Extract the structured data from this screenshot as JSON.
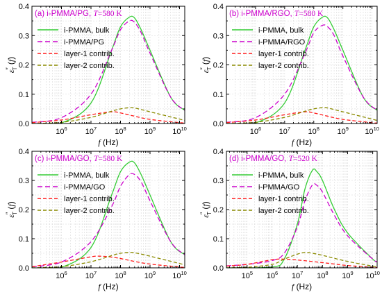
{
  "figure": {
    "colors": {
      "bulk": "#33cc33",
      "composite": "#cc00cc",
      "layer1": "#ff1a1a",
      "layer2": "#8b8b00",
      "title": "#cc00cc",
      "axis": "#000000",
      "grid": "#d8d8d8"
    },
    "xlabel_prefix": "f",
    "xlabel_suffix": " (Hz)",
    "ylabel": "ε″T (f)"
  },
  "chart_data": [
    {
      "type": "line",
      "panel": "a",
      "title": "(a) i-PMMA/PG, T=580 K",
      "xlabel": "f (Hz)",
      "ylabel": "ε″T (f)",
      "xscale": "log",
      "xlim": [
        100000,
        15000000000
      ],
      "ylim": [
        0,
        0.4
      ],
      "yticks": [
        0.0,
        0.1,
        0.2,
        0.3,
        0.4
      ],
      "xticks": [
        "10^6",
        "10^7",
        "10^8",
        "10^9",
        "10^10"
      ],
      "legend": "top-right",
      "series": [
        {
          "name": "i-PMMA, bulk",
          "style": "solid",
          "x": [
            100000.0,
            1000000.0,
            10000000.0,
            50000000.0,
            100000000.0,
            200000000.0,
            300000000.0,
            500000000.0,
            1000000000.0,
            5000000000.0,
            15000000000.0
          ],
          "y": [
            0.0,
            0.002,
            0.07,
            0.25,
            0.33,
            0.363,
            0.36,
            0.32,
            0.25,
            0.09,
            0.045
          ]
        },
        {
          "name": "i-PMMA/PG",
          "style": "dashed",
          "x": [
            100000.0,
            1000000.0,
            10000000.0,
            50000000.0,
            100000000.0,
            200000000.0,
            300000000.0,
            500000000.0,
            1000000000.0,
            5000000000.0,
            15000000000.0
          ],
          "y": [
            0.004,
            0.02,
            0.1,
            0.25,
            0.32,
            0.35,
            0.345,
            0.31,
            0.24,
            0.09,
            0.045
          ]
        },
        {
          "name": "layer-1 contrib.",
          "style": "dashed",
          "x": [
            100000.0,
            1000000.0,
            10000000.0,
            50000000.0,
            100000000.0,
            300000000.0,
            1000000000.0,
            10000000000.0,
            15000000000.0
          ],
          "y": [
            0.003,
            0.012,
            0.03,
            0.04,
            0.036,
            0.025,
            0.014,
            0.003,
            0.002
          ]
        },
        {
          "name": "layer-2 contrib.",
          "style": "dashed",
          "x": [
            100000.0,
            1000000.0,
            10000000.0,
            50000000.0,
            100000000.0,
            200000000.0,
            300000000.0,
            1000000000.0,
            10000000000.0,
            15000000000.0
          ],
          "y": [
            0.0,
            0.004,
            0.021,
            0.042,
            0.05,
            0.054,
            0.053,
            0.04,
            0.015,
            0.01
          ]
        }
      ]
    },
    {
      "type": "line",
      "panel": "b",
      "title": "(b) i-PMMA/RGO, T=580 K",
      "xlabel": "f (Hz)",
      "ylabel": "ε″T (f)",
      "xscale": "log",
      "xlim": [
        100000,
        15000000000
      ],
      "ylim": [
        0,
        0.4
      ],
      "yticks": [
        0.0,
        0.1,
        0.2,
        0.3,
        0.4
      ],
      "xticks": [
        "10^6",
        "10^7",
        "10^8",
        "10^9",
        "10^10"
      ],
      "legend": "top-right",
      "series": [
        {
          "name": "i-PMMA, bulk",
          "style": "solid",
          "x": [
            100000.0,
            1000000.0,
            10000000.0,
            50000000.0,
            100000000.0,
            200000000.0,
            300000000.0,
            500000000.0,
            1000000000.0,
            5000000000.0,
            15000000000.0
          ],
          "y": [
            0.0,
            0.002,
            0.07,
            0.25,
            0.33,
            0.363,
            0.36,
            0.32,
            0.25,
            0.09,
            0.045
          ]
        },
        {
          "name": "i-PMMA/RGO",
          "style": "dashed",
          "x": [
            100000.0,
            1000000.0,
            10000000.0,
            50000000.0,
            100000000.0,
            200000000.0,
            300000000.0,
            500000000.0,
            1000000000.0,
            5000000000.0,
            15000000000.0
          ],
          "y": [
            0.004,
            0.02,
            0.1,
            0.24,
            0.31,
            0.335,
            0.33,
            0.3,
            0.23,
            0.09,
            0.045
          ]
        },
        {
          "name": "layer-1 contrib.",
          "style": "dashed",
          "x": [
            100000.0,
            1000000.0,
            10000000.0,
            50000000.0,
            100000000.0,
            300000000.0,
            1000000000.0,
            10000000000.0,
            15000000000.0
          ],
          "y": [
            0.003,
            0.012,
            0.03,
            0.04,
            0.036,
            0.025,
            0.014,
            0.003,
            0.002
          ]
        },
        {
          "name": "layer-2 contrib.",
          "style": "dashed",
          "x": [
            100000.0,
            1000000.0,
            10000000.0,
            50000000.0,
            100000000.0,
            200000000.0,
            300000000.0,
            1000000000.0,
            10000000000.0,
            15000000000.0
          ],
          "y": [
            0.0,
            0.004,
            0.021,
            0.042,
            0.05,
            0.054,
            0.053,
            0.04,
            0.015,
            0.01
          ]
        }
      ]
    },
    {
      "type": "line",
      "panel": "c",
      "title": "(c) i-PMMA/GO, T=580 K",
      "xlabel": "f (Hz)",
      "ylabel": "ε″T (f)",
      "xscale": "log",
      "xlim": [
        100000,
        15000000000
      ],
      "ylim": [
        0,
        0.4
      ],
      "yticks": [
        0.0,
        0.1,
        0.2,
        0.3,
        0.4
      ],
      "xticks": [
        "10^6",
        "10^7",
        "10^8",
        "10^9",
        "10^10"
      ],
      "legend": "top-right",
      "series": [
        {
          "name": "i-PMMA, bulk",
          "style": "solid",
          "x": [
            100000.0,
            1000000.0,
            10000000.0,
            50000000.0,
            100000000.0,
            200000000.0,
            300000000.0,
            500000000.0,
            1000000000.0,
            5000000000.0,
            15000000000.0
          ],
          "y": [
            0.0,
            0.002,
            0.07,
            0.25,
            0.33,
            0.363,
            0.36,
            0.32,
            0.25,
            0.09,
            0.045
          ]
        },
        {
          "name": "i-PMMA/GO",
          "style": "dashed",
          "x": [
            100000.0,
            1000000.0,
            10000000.0,
            50000000.0,
            100000000.0,
            200000000.0,
            300000000.0,
            500000000.0,
            1000000000.0,
            5000000000.0,
            15000000000.0
          ],
          "y": [
            0.004,
            0.02,
            0.09,
            0.21,
            0.28,
            0.32,
            0.32,
            0.295,
            0.23,
            0.09,
            0.045
          ]
        },
        {
          "name": "layer-1 contrib.",
          "style": "dashed",
          "x": [
            100000.0,
            1000000.0,
            10000000.0,
            20000000.0,
            50000000.0,
            100000000.0,
            300000000.0,
            1000000000.0,
            10000000000.0,
            15000000000.0
          ],
          "y": [
            0.004,
            0.02,
            0.038,
            0.04,
            0.037,
            0.032,
            0.022,
            0.013,
            0.003,
            0.002
          ]
        },
        {
          "name": "layer-2 contrib.",
          "style": "dashed",
          "x": [
            100000.0,
            1000000.0,
            10000000.0,
            50000000.0,
            100000000.0,
            200000000.0,
            300000000.0,
            1000000000.0,
            10000000000.0,
            15000000000.0
          ],
          "y": [
            0.0,
            0.004,
            0.021,
            0.042,
            0.05,
            0.053,
            0.052,
            0.04,
            0.015,
            0.01
          ]
        }
      ]
    },
    {
      "type": "line",
      "panel": "d",
      "title": "(d) i-PMMA/GO, T=520 K",
      "xlabel": "f (Hz)",
      "ylabel": "ε″T (f)",
      "xscale": "log",
      "xlim": [
        15000,
        15000000000
      ],
      "ylim": [
        0,
        0.4
      ],
      "yticks": [
        0.0,
        0.1,
        0.2,
        0.3,
        0.4
      ],
      "xticks": [
        "10^5",
        "10^6",
        "10^7",
        "10^8",
        "10^9",
        "10^10"
      ],
      "legend": "top-right",
      "series": [
        {
          "name": "i-PMMA, bulk",
          "style": "solid",
          "x": [
            15000.0,
            1000000.0,
            3000000.0,
            10000000.0,
            20000000.0,
            40000000.0,
            60000000.0,
            100000000.0,
            300000000.0,
            1000000000.0,
            10000000000.0,
            15000000000.0
          ],
          "y": [
            0.0,
            0.003,
            0.03,
            0.15,
            0.27,
            0.335,
            0.33,
            0.3,
            0.2,
            0.12,
            0.03,
            0.022
          ]
        },
        {
          "name": "i-PMMA/GO",
          "style": "dashed",
          "x": [
            15000.0,
            100000.0,
            1000000.0,
            3000000.0,
            10000000.0,
            20000000.0,
            40000000.0,
            60000000.0,
            100000000.0,
            300000000.0,
            1000000000.0,
            10000000000.0,
            15000000000.0
          ],
          "y": [
            0.007,
            0.012,
            0.025,
            0.05,
            0.14,
            0.23,
            0.285,
            0.283,
            0.26,
            0.18,
            0.11,
            0.03,
            0.022
          ]
        },
        {
          "name": "layer-1 contrib.",
          "style": "dashed",
          "x": [
            15000.0,
            100000.0,
            1000000.0,
            3000000.0,
            10000000.0,
            100000000.0,
            1000000000.0,
            10000000000.0,
            15000000000.0
          ],
          "y": [
            0.006,
            0.012,
            0.028,
            0.03,
            0.027,
            0.018,
            0.008,
            0.002,
            0.001
          ]
        },
        {
          "name": "layer-2 contrib.",
          "style": "dashed",
          "x": [
            15000.0,
            100000.0,
            1000000.0,
            3000000.0,
            10000000.0,
            20000000.0,
            40000000.0,
            100000000.0,
            1000000000.0,
            10000000000.0,
            15000000000.0
          ],
          "y": [
            0.0,
            0.002,
            0.012,
            0.03,
            0.047,
            0.053,
            0.05,
            0.043,
            0.022,
            0.006,
            0.004
          ]
        }
      ]
    }
  ]
}
